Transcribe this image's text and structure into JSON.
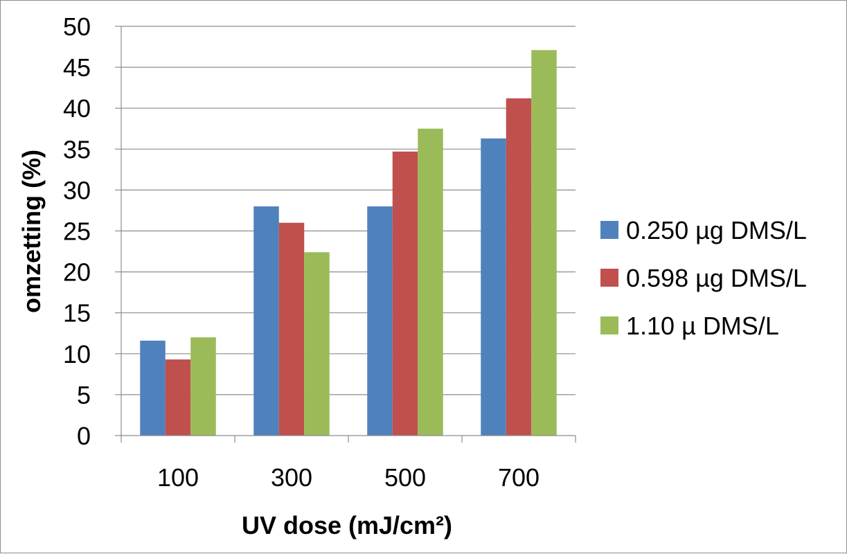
{
  "chart_data": {
    "type": "bar",
    "categories": [
      "100",
      "300",
      "500",
      "700"
    ],
    "series": [
      {
        "name": "0.250 µg DMS/L",
        "color": "#4f81bd",
        "values": [
          11.6,
          28.0,
          28.0,
          36.3
        ]
      },
      {
        "name": "0.598 µg DMS/L",
        "color": "#c0504d",
        "values": [
          9.3,
          26.0,
          34.7,
          41.2
        ]
      },
      {
        "name": "1.10 µ DMS/L",
        "color": "#9bbb59",
        "values": [
          12.0,
          22.4,
          37.5,
          47.1
        ]
      }
    ],
    "xlabel": "UV dose (mJ/cm²)",
    "ylabel": "omzetting (%)",
    "ylim": [
      0,
      50
    ],
    "yticks": [
      "0",
      "5",
      "10",
      "15",
      "20",
      "25",
      "30",
      "35",
      "40",
      "45",
      "50"
    ],
    "grid": true,
    "legend": "right"
  }
}
